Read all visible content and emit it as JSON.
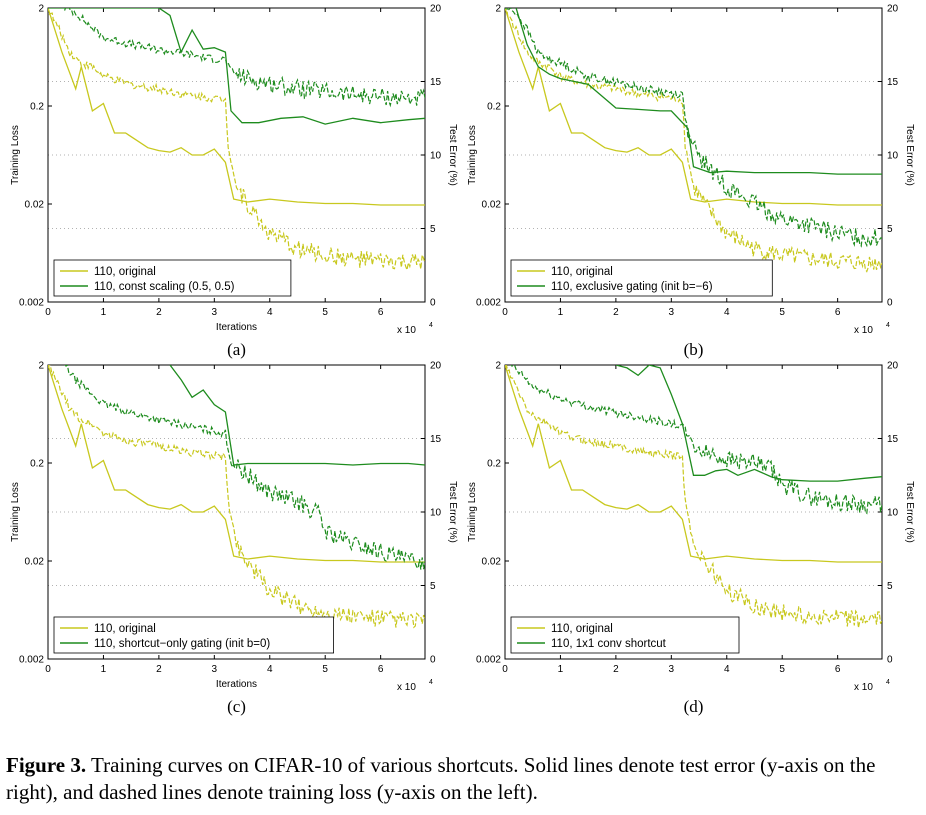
{
  "figure": {
    "caption_label": "Figure 3.",
    "caption_text": "Training curves on CIFAR-10 of various shortcuts. Solid lines denote test error (y-axis on the right), and dashed lines denote training loss (y-axis on the left)."
  },
  "colors": {
    "original": "#c8c81e",
    "variant": "#1e8c1e",
    "grid": "#999999"
  },
  "chart_data": [
    {
      "type": "line",
      "panel_label": "(a)",
      "xlabel": "Iterations",
      "x_multiplier": "x 10",
      "x_multiplier_exp": "4",
      "ylabel_left": "Training Loss",
      "ylabel_right": "Test Error (%)",
      "xlim": [
        0,
        6.8
      ],
      "ylim_left": [
        0.002,
        2
      ],
      "yscale_left": "log",
      "ylim_right": [
        0,
        20
      ],
      "xticks": [
        0,
        1,
        2,
        3,
        4,
        5,
        6
      ],
      "yticks_left": [
        "0.002",
        "0.02",
        "0.2",
        "2"
      ],
      "yticks_right": [
        0,
        5,
        10,
        15,
        20
      ],
      "legend": [
        "110, original",
        "110, const scaling (0.5, 0.5)"
      ],
      "series": [
        {
          "name": "110, original",
          "kind": "test_error",
          "x": [
            0,
            0.25,
            0.5,
            0.6,
            0.8,
            1.0,
            1.2,
            1.4,
            1.6,
            1.8,
            2.0,
            2.2,
            2.4,
            2.6,
            2.8,
            3.0,
            3.2,
            3.35,
            3.6,
            4.0,
            4.5,
            5.0,
            5.5,
            6.0,
            6.5,
            6.8
          ],
          "y": [
            20,
            17,
            14.5,
            16,
            13,
            13.5,
            11.5,
            11.5,
            11,
            10.5,
            10.3,
            10.2,
            10.5,
            10,
            10,
            10.4,
            9.5,
            7,
            6.8,
            7,
            6.8,
            6.7,
            6.7,
            6.6,
            6.6,
            6.6
          ]
        },
        {
          "name": "110, original",
          "kind": "training_loss",
          "x": [
            0,
            0.2,
            0.4,
            0.6,
            0.8,
            1.0,
            1.5,
            2.0,
            2.5,
            3.0,
            3.2,
            3.25,
            3.4,
            3.6,
            3.8,
            4.0,
            4.5,
            5.0,
            5.5,
            6.0,
            6.5,
            6.8
          ],
          "y": [
            2,
            1.2,
            0.7,
            0.55,
            0.5,
            0.4,
            0.33,
            0.3,
            0.26,
            0.24,
            0.23,
            0.08,
            0.03,
            0.02,
            0.014,
            0.01,
            0.007,
            0.006,
            0.0055,
            0.0052,
            0.005,
            0.005
          ]
        },
        {
          "name": "110, const scaling (0.5, 0.5)",
          "kind": "test_error",
          "x": [
            0,
            0.3,
            0.5,
            0.7,
            1.0,
            1.5,
            2.0,
            2.2,
            2.4,
            2.6,
            2.8,
            3.0,
            3.2,
            3.3,
            3.5,
            3.8,
            4.2,
            4.6,
            5.0,
            5.5,
            6.0,
            6.5,
            6.8
          ],
          "y": [
            20,
            20,
            20,
            20,
            20,
            20,
            20,
            19.5,
            17,
            18.5,
            17.2,
            17.3,
            17,
            13,
            12.2,
            12.2,
            12.5,
            12.6,
            12.1,
            12.5,
            12.2,
            12.4,
            12.5
          ]
        },
        {
          "name": "110, const scaling (0.5, 0.5)",
          "kind": "training_loss",
          "x": [
            0.3,
            0.5,
            0.7,
            1.0,
            1.5,
            2.0,
            2.5,
            3.0,
            3.2,
            3.3,
            3.6,
            4.0,
            4.5,
            5.0,
            5.5,
            6.0,
            6.5,
            6.8
          ],
          "y": [
            2,
            1.8,
            1.4,
            1.0,
            0.85,
            0.75,
            0.68,
            0.6,
            0.6,
            0.45,
            0.38,
            0.34,
            0.3,
            0.28,
            0.26,
            0.25,
            0.24,
            0.24
          ]
        }
      ]
    },
    {
      "type": "line",
      "panel_label": "(b)",
      "xlabel": "",
      "x_multiplier": "x 10",
      "x_multiplier_exp": "4",
      "ylabel_left": "Training Loss",
      "ylabel_right": "Test Error (%)",
      "xlim": [
        0,
        6.8
      ],
      "ylim_left": [
        0.002,
        2
      ],
      "yscale_left": "log",
      "ylim_right": [
        0,
        20
      ],
      "xticks": [
        0,
        1,
        2,
        3,
        4,
        5,
        6
      ],
      "yticks_left": [
        "0.002",
        "0.02",
        "0.2",
        "2"
      ],
      "yticks_right": [
        0,
        5,
        10,
        15,
        20
      ],
      "legend": [
        "110, original",
        "110, exclusive gating (init b=−6)"
      ],
      "series": [
        {
          "name": "110, original",
          "kind": "test_error",
          "x": [
            0,
            0.25,
            0.5,
            0.6,
            0.8,
            1.0,
            1.2,
            1.4,
            1.6,
            1.8,
            2.0,
            2.2,
            2.4,
            2.6,
            2.8,
            3.0,
            3.2,
            3.35,
            3.6,
            4.0,
            4.5,
            5.0,
            5.5,
            6.0,
            6.5,
            6.8
          ],
          "y": [
            20,
            17,
            14.5,
            16,
            13,
            13.5,
            11.5,
            11.5,
            11,
            10.5,
            10.3,
            10.2,
            10.5,
            10,
            10,
            10.4,
            9.5,
            7,
            6.8,
            7,
            6.8,
            6.7,
            6.7,
            6.6,
            6.6,
            6.6
          ]
        },
        {
          "name": "110, original",
          "kind": "training_loss",
          "x": [
            0,
            0.2,
            0.4,
            0.6,
            0.8,
            1.0,
            1.5,
            2.0,
            2.5,
            3.0,
            3.2,
            3.25,
            3.4,
            3.6,
            3.8,
            4.0,
            4.5,
            5.0,
            5.5,
            6.0,
            6.5,
            6.8
          ],
          "y": [
            2,
            1.2,
            0.7,
            0.55,
            0.5,
            0.4,
            0.33,
            0.3,
            0.26,
            0.24,
            0.23,
            0.08,
            0.03,
            0.02,
            0.014,
            0.01,
            0.007,
            0.006,
            0.0055,
            0.0052,
            0.005,
            0.005
          ]
        },
        {
          "name": "110, exclusive gating (init b=−6)",
          "kind": "test_error",
          "x": [
            0.2,
            0.4,
            0.6,
            0.8,
            1.0,
            1.5,
            2.0,
            2.4,
            2.8,
            3.0,
            3.3,
            3.4,
            3.7,
            4.0,
            4.5,
            5.0,
            5.5,
            6.0,
            6.5,
            6.8
          ],
          "y": [
            20,
            17.5,
            16,
            15.5,
            15.2,
            14.8,
            13.2,
            13.1,
            13,
            13,
            11.8,
            9.2,
            8.8,
            8.9,
            8.8,
            8.8,
            8.8,
            8.7,
            8.7,
            8.7
          ]
        },
        {
          "name": "110, exclusive gating (init b=−6)",
          "kind": "training_loss",
          "x": [
            0,
            0.2,
            0.4,
            0.6,
            0.8,
            1.0,
            1.5,
            2.0,
            2.5,
            3.0,
            3.2,
            3.3,
            3.5,
            3.8,
            4.0,
            4.5,
            5.0,
            5.5,
            6.0,
            6.5,
            6.8
          ],
          "y": [
            2,
            1.8,
            1.2,
            0.7,
            0.6,
            0.55,
            0.4,
            0.35,
            0.3,
            0.27,
            0.26,
            0.1,
            0.06,
            0.04,
            0.03,
            0.02,
            0.014,
            0.012,
            0.01,
            0.009,
            0.009
          ]
        }
      ]
    },
    {
      "type": "line",
      "panel_label": "(c)",
      "xlabel": "Iterations",
      "x_multiplier": "x 10",
      "x_multiplier_exp": "4",
      "ylabel_left": "Training Loss",
      "ylabel_right": "Test Error (%)",
      "xlim": [
        0,
        6.8
      ],
      "ylim_left": [
        0.002,
        2
      ],
      "yscale_left": "log",
      "ylim_right": [
        0,
        20
      ],
      "xticks": [
        0,
        1,
        2,
        3,
        4,
        5,
        6
      ],
      "yticks_left": [
        "0.002",
        "0.02",
        "0.2",
        "2"
      ],
      "yticks_right": [
        0,
        5,
        10,
        15,
        20
      ],
      "legend": [
        "110, original",
        "110, shortcut−only gating (init b=0)"
      ],
      "series": [
        {
          "name": "110, original",
          "kind": "test_error",
          "x": [
            0,
            0.25,
            0.5,
            0.6,
            0.8,
            1.0,
            1.2,
            1.4,
            1.6,
            1.8,
            2.0,
            2.2,
            2.4,
            2.6,
            2.8,
            3.0,
            3.2,
            3.35,
            3.6,
            4.0,
            4.5,
            5.0,
            5.5,
            6.0,
            6.5,
            6.8
          ],
          "y": [
            20,
            17,
            14.5,
            16,
            13,
            13.5,
            11.5,
            11.5,
            11,
            10.5,
            10.3,
            10.2,
            10.5,
            10,
            10,
            10.4,
            9.5,
            7,
            6.8,
            7,
            6.8,
            6.7,
            6.7,
            6.6,
            6.6,
            6.6
          ]
        },
        {
          "name": "110, original",
          "kind": "training_loss",
          "x": [
            0,
            0.2,
            0.4,
            0.6,
            0.8,
            1.0,
            1.5,
            2.0,
            2.5,
            3.0,
            3.2,
            3.25,
            3.4,
            3.6,
            3.8,
            4.0,
            4.5,
            5.0,
            5.5,
            6.0,
            6.5,
            6.8
          ],
          "y": [
            2,
            1.2,
            0.7,
            0.55,
            0.5,
            0.4,
            0.33,
            0.3,
            0.26,
            0.24,
            0.23,
            0.08,
            0.03,
            0.02,
            0.014,
            0.01,
            0.007,
            0.006,
            0.0055,
            0.0052,
            0.005,
            0.005
          ]
        },
        {
          "name": "110, shortcut−only gating (init b=0)",
          "kind": "test_error",
          "x": [
            2.2,
            2.4,
            2.6,
            2.8,
            3.0,
            3.2,
            3.35,
            3.6,
            4.0,
            4.5,
            5.0,
            5.5,
            6.0,
            6.5,
            6.8
          ],
          "y": [
            20,
            19,
            17.8,
            18.3,
            17.3,
            16.8,
            13.2,
            13.3,
            13.3,
            13.3,
            13.3,
            13.2,
            13.3,
            13.3,
            13.2
          ]
        },
        {
          "name": "110, shortcut−only gating (init b=0)",
          "kind": "training_loss",
          "x": [
            0.3,
            0.5,
            0.8,
            1.0,
            1.5,
            2.0,
            2.5,
            3.0,
            3.2,
            3.3,
            3.6,
            4.0,
            4.5,
            4.9,
            5.0,
            5.5,
            6.0,
            6.5,
            6.8
          ],
          "y": [
            2,
            1.4,
            1.0,
            0.8,
            0.65,
            0.55,
            0.48,
            0.42,
            0.4,
            0.2,
            0.15,
            0.1,
            0.08,
            0.06,
            0.04,
            0.03,
            0.025,
            0.02,
            0.02
          ]
        }
      ]
    },
    {
      "type": "line",
      "panel_label": "(d)",
      "xlabel": "",
      "x_multiplier": "x 10",
      "x_multiplier_exp": "4",
      "ylabel_left": "Training Loss",
      "ylabel_right": "Test Error (%)",
      "xlim": [
        0,
        6.8
      ],
      "ylim_left": [
        0.002,
        2
      ],
      "yscale_left": "log",
      "ylim_right": [
        0,
        20
      ],
      "xticks": [
        0,
        1,
        2,
        3,
        4,
        5,
        6
      ],
      "yticks_left": [
        "0.002",
        "0.02",
        "0.2",
        "2"
      ],
      "yticks_right": [
        0,
        5,
        10,
        15,
        20
      ],
      "legend": [
        "110, original",
        "110, 1x1 conv shortcut"
      ],
      "series": [
        {
          "name": "110, original",
          "kind": "test_error",
          "x": [
            0,
            0.25,
            0.5,
            0.6,
            0.8,
            1.0,
            1.2,
            1.4,
            1.6,
            1.8,
            2.0,
            2.2,
            2.4,
            2.6,
            2.8,
            3.0,
            3.2,
            3.35,
            3.6,
            4.0,
            4.5,
            5.0,
            5.5,
            6.0,
            6.5,
            6.8
          ],
          "y": [
            20,
            17,
            14.5,
            16,
            13,
            13.5,
            11.5,
            11.5,
            11,
            10.5,
            10.3,
            10.2,
            10.5,
            10,
            10,
            10.4,
            9.5,
            7,
            6.8,
            7,
            6.8,
            6.7,
            6.7,
            6.6,
            6.6,
            6.6
          ]
        },
        {
          "name": "110, original",
          "kind": "training_loss",
          "x": [
            0,
            0.2,
            0.4,
            0.6,
            0.8,
            1.0,
            1.5,
            2.0,
            2.5,
            3.0,
            3.2,
            3.25,
            3.4,
            3.6,
            3.8,
            4.0,
            4.5,
            5.0,
            5.5,
            6.0,
            6.5,
            6.8
          ],
          "y": [
            2,
            1.2,
            0.7,
            0.55,
            0.5,
            0.4,
            0.33,
            0.3,
            0.26,
            0.24,
            0.23,
            0.08,
            0.03,
            0.02,
            0.014,
            0.01,
            0.007,
            0.006,
            0.0055,
            0.0052,
            0.005,
            0.005
          ]
        },
        {
          "name": "110, 1x1 conv shortcut",
          "kind": "test_error",
          "x": [
            2.0,
            2.2,
            2.4,
            2.6,
            2.8,
            3.0,
            3.2,
            3.4,
            3.6,
            3.8,
            4.0,
            4.2,
            4.5,
            4.8,
            5.0,
            5.5,
            6.0,
            6.5,
            6.8
          ],
          "y": [
            20,
            19.8,
            19.3,
            20,
            19.8,
            18,
            16,
            12.5,
            12.5,
            12.8,
            12.9,
            12.5,
            12.9,
            12.4,
            12.2,
            12.1,
            12.1,
            12.3,
            12.4
          ]
        },
        {
          "name": "110, 1x1 conv shortcut",
          "kind": "training_loss",
          "x": [
            0.1,
            0.3,
            0.5,
            1.0,
            1.5,
            2.0,
            2.5,
            3.0,
            3.2,
            3.4,
            3.6,
            4.0,
            4.5,
            4.8,
            5.0,
            5.5,
            6.0,
            6.5,
            6.8
          ],
          "y": [
            2,
            1.6,
            1.2,
            0.9,
            0.75,
            0.65,
            0.58,
            0.5,
            0.48,
            0.3,
            0.26,
            0.22,
            0.2,
            0.17,
            0.12,
            0.09,
            0.08,
            0.075,
            0.075
          ]
        }
      ]
    }
  ]
}
